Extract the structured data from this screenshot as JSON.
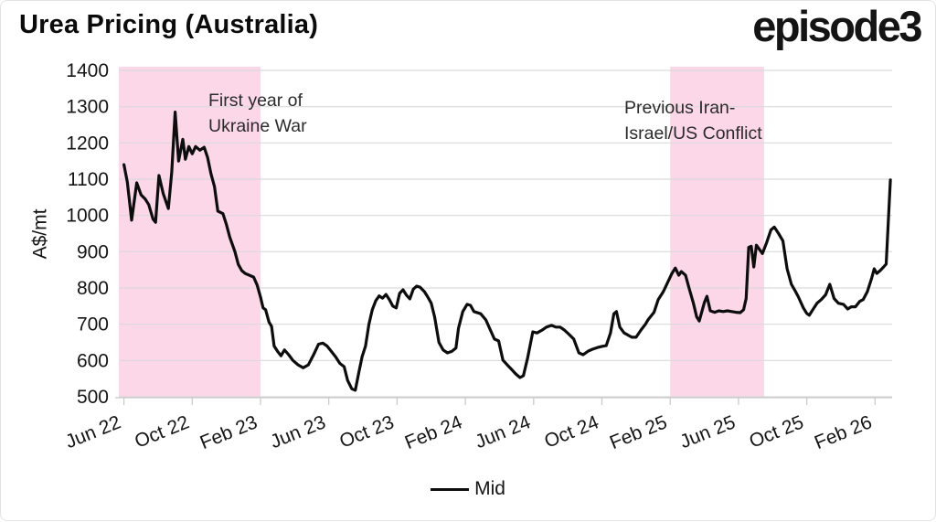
{
  "header": {
    "title": "Urea Pricing (Australia)",
    "logo": "episode3"
  },
  "legend": {
    "label": "Mid"
  },
  "chart_data": {
    "type": "line",
    "title": "Urea Pricing (Australia)",
    "ylabel": "A$/mt",
    "xlabel": "",
    "ylim": [
      500,
      1400
    ],
    "xlim": [
      -0.3,
      45
    ],
    "x_unit": "months since Jun 2022",
    "grid": "horizontal",
    "legend_position": "bottom-center",
    "y_ticks": [
      500,
      600,
      700,
      800,
      900,
      1000,
      1100,
      1200,
      1300,
      1400
    ],
    "x_ticks": [
      {
        "month": 0,
        "label": "Jun 22"
      },
      {
        "month": 4,
        "label": "Oct 22"
      },
      {
        "month": 8,
        "label": "Feb 23"
      },
      {
        "month": 12,
        "label": "Jun 23"
      },
      {
        "month": 16,
        "label": "Oct 23"
      },
      {
        "month": 20,
        "label": "Feb 24"
      },
      {
        "month": 24,
        "label": "Jun 24"
      },
      {
        "month": 28,
        "label": "Oct 24"
      },
      {
        "month": 32,
        "label": "Feb 25"
      },
      {
        "month": 36,
        "label": "Jun 25"
      },
      {
        "month": 40,
        "label": "Oct 25"
      },
      {
        "month": 44,
        "label": "Feb 26"
      }
    ],
    "colors": {
      "line": "#0d0d0d",
      "band": "#fcd7e7",
      "grid": "#d9d9d9",
      "axis": "#c8c8c8",
      "text": "#151515"
    },
    "shaded_regions": [
      {
        "label": "First year of\nUkraine War",
        "start_month": -0.3,
        "end_month": 8.0
      },
      {
        "label": "Previous Iran-\nIsrael/US Conflict",
        "start_month": 32.0,
        "end_month": 37.5
      }
    ],
    "annotations": [
      {
        "text": "First year of\nUkraine War"
      },
      {
        "text": "Previous Iran-\nIsrael/US Conflict"
      }
    ],
    "series": [
      {
        "name": "Mid",
        "points": [
          [
            0,
            1140
          ],
          [
            0.2,
            1092
          ],
          [
            0.45,
            987
          ],
          [
            0.75,
            1090
          ],
          [
            1.0,
            1057
          ],
          [
            1.25,
            1045
          ],
          [
            1.45,
            1030
          ],
          [
            1.7,
            990
          ],
          [
            1.85,
            981
          ],
          [
            2.05,
            1110
          ],
          [
            2.3,
            1060
          ],
          [
            2.6,
            1019
          ],
          [
            2.8,
            1120
          ],
          [
            3.0,
            1285
          ],
          [
            3.2,
            1150
          ],
          [
            3.45,
            1210
          ],
          [
            3.6,
            1155
          ],
          [
            3.8,
            1190
          ],
          [
            4.0,
            1170
          ],
          [
            4.2,
            1190
          ],
          [
            4.45,
            1180
          ],
          [
            4.7,
            1188
          ],
          [
            4.9,
            1160
          ],
          [
            5.1,
            1115
          ],
          [
            5.3,
            1080
          ],
          [
            5.5,
            1012
          ],
          [
            5.8,
            1005
          ],
          [
            6.0,
            975
          ],
          [
            6.2,
            940
          ],
          [
            6.5,
            900
          ],
          [
            6.7,
            865
          ],
          [
            6.9,
            848
          ],
          [
            7.1,
            840
          ],
          [
            7.35,
            835
          ],
          [
            7.6,
            830
          ],
          [
            7.8,
            808
          ],
          [
            8.0,
            775
          ],
          [
            8.15,
            745
          ],
          [
            8.3,
            740
          ],
          [
            8.5,
            706
          ],
          [
            8.65,
            694
          ],
          [
            8.8,
            640
          ],
          [
            9.0,
            625
          ],
          [
            9.2,
            613
          ],
          [
            9.4,
            629
          ],
          [
            9.65,
            616
          ],
          [
            9.9,
            600
          ],
          [
            10.2,
            588
          ],
          [
            10.5,
            580
          ],
          [
            10.8,
            588
          ],
          [
            11.1,
            615
          ],
          [
            11.4,
            645
          ],
          [
            11.65,
            648
          ],
          [
            11.9,
            640
          ],
          [
            12.1,
            628
          ],
          [
            12.4,
            610
          ],
          [
            12.65,
            592
          ],
          [
            12.9,
            583
          ],
          [
            13.1,
            545
          ],
          [
            13.35,
            522
          ],
          [
            13.55,
            518
          ],
          [
            13.75,
            565
          ],
          [
            13.95,
            610
          ],
          [
            14.15,
            640
          ],
          [
            14.35,
            700
          ],
          [
            14.55,
            740
          ],
          [
            14.75,
            765
          ],
          [
            14.95,
            778
          ],
          [
            15.15,
            772
          ],
          [
            15.35,
            782
          ],
          [
            15.55,
            768
          ],
          [
            15.75,
            750
          ],
          [
            15.95,
            745
          ],
          [
            16.15,
            785
          ],
          [
            16.35,
            795
          ],
          [
            16.55,
            780
          ],
          [
            16.75,
            770
          ],
          [
            16.95,
            797
          ],
          [
            17.15,
            805
          ],
          [
            17.35,
            802
          ],
          [
            17.6,
            790
          ],
          [
            17.8,
            775
          ],
          [
            18.0,
            758
          ],
          [
            18.2,
            720
          ],
          [
            18.45,
            650
          ],
          [
            18.7,
            629
          ],
          [
            18.95,
            621
          ],
          [
            19.2,
            625
          ],
          [
            19.45,
            634
          ],
          [
            19.6,
            689
          ],
          [
            19.85,
            735
          ],
          [
            20.1,
            755
          ],
          [
            20.3,
            752
          ],
          [
            20.5,
            735
          ],
          [
            20.9,
            729
          ],
          [
            21.2,
            712
          ],
          [
            21.7,
            659
          ],
          [
            21.95,
            654
          ],
          [
            22.2,
            601
          ],
          [
            22.45,
            588
          ],
          [
            22.7,
            576
          ],
          [
            22.95,
            563
          ],
          [
            23.2,
            553
          ],
          [
            23.4,
            558
          ],
          [
            23.65,
            608
          ],
          [
            23.95,
            679
          ],
          [
            24.2,
            676
          ],
          [
            24.5,
            684
          ],
          [
            24.75,
            692
          ],
          [
            25.05,
            697
          ],
          [
            25.3,
            692
          ],
          [
            25.55,
            692
          ],
          [
            25.8,
            684
          ],
          [
            26.1,
            671
          ],
          [
            26.35,
            659
          ],
          [
            26.65,
            621
          ],
          [
            26.9,
            616
          ],
          [
            27.2,
            626
          ],
          [
            27.45,
            631
          ],
          [
            27.75,
            636
          ],
          [
            28.0,
            639
          ],
          [
            28.25,
            641
          ],
          [
            28.5,
            676
          ],
          [
            28.7,
            729
          ],
          [
            28.85,
            735
          ],
          [
            29.05,
            692
          ],
          [
            29.3,
            676
          ],
          [
            29.5,
            671
          ],
          [
            29.75,
            664
          ],
          [
            30.0,
            664
          ],
          [
            30.3,
            685
          ],
          [
            30.55,
            700
          ],
          [
            30.7,
            712
          ],
          [
            31.05,
            733
          ],
          [
            31.3,
            768
          ],
          [
            31.6,
            790
          ],
          [
            31.85,
            815
          ],
          [
            32.1,
            840
          ],
          [
            32.3,
            855
          ],
          [
            32.5,
            835
          ],
          [
            32.65,
            845
          ],
          [
            32.9,
            835
          ],
          [
            33.1,
            800
          ],
          [
            33.35,
            760
          ],
          [
            33.55,
            720
          ],
          [
            33.7,
            709
          ],
          [
            34.0,
            760
          ],
          [
            34.15,
            777
          ],
          [
            34.35,
            737
          ],
          [
            34.6,
            733
          ],
          [
            34.85,
            737
          ],
          [
            35.1,
            735
          ],
          [
            35.35,
            737
          ],
          [
            35.6,
            735
          ],
          [
            35.85,
            733
          ],
          [
            36.1,
            732
          ],
          [
            36.3,
            740
          ],
          [
            36.45,
            771
          ],
          [
            36.6,
            912
          ],
          [
            36.75,
            915
          ],
          [
            36.9,
            858
          ],
          [
            37.05,
            918
          ],
          [
            37.25,
            905
          ],
          [
            37.4,
            895
          ],
          [
            37.65,
            925
          ],
          [
            37.9,
            960
          ],
          [
            38.1,
            968
          ],
          [
            38.35,
            950
          ],
          [
            38.6,
            930
          ],
          [
            38.85,
            853
          ],
          [
            39.1,
            810
          ],
          [
            39.3,
            794
          ],
          [
            39.5,
            776
          ],
          [
            39.8,
            745
          ],
          [
            40.0,
            730
          ],
          [
            40.15,
            725
          ],
          [
            40.35,
            740
          ],
          [
            40.6,
            758
          ],
          [
            40.85,
            768
          ],
          [
            41.1,
            781
          ],
          [
            41.35,
            810
          ],
          [
            41.6,
            771
          ],
          [
            41.85,
            758
          ],
          [
            42.15,
            755
          ],
          [
            42.4,
            742
          ],
          [
            42.6,
            748
          ],
          [
            42.85,
            748
          ],
          [
            43.1,
            763
          ],
          [
            43.3,
            768
          ],
          [
            43.55,
            790
          ],
          [
            43.8,
            827
          ],
          [
            43.95,
            853
          ],
          [
            44.1,
            840
          ],
          [
            44.3,
            848
          ],
          [
            44.5,
            858
          ],
          [
            44.65,
            866
          ],
          [
            44.9,
            1098
          ]
        ]
      }
    ]
  }
}
